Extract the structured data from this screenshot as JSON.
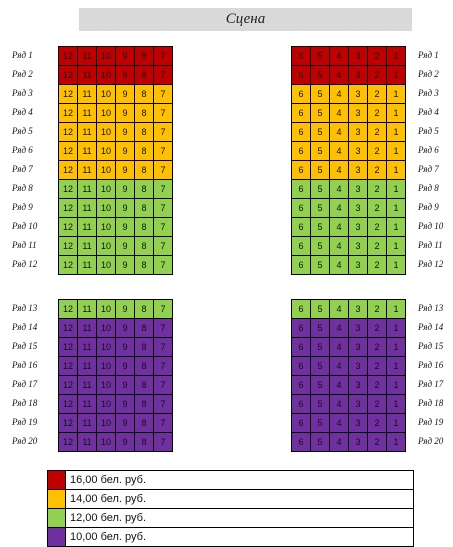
{
  "stage_label": "Сцена",
  "rows_top": [
    "Ряд 1",
    "Ряд 2",
    "Ряд 3",
    "Ряд 4",
    "Ряд 5",
    "Ряд 6",
    "Ряд 7",
    "Ряд 8",
    "Ряд 9",
    "Ряд 10",
    "Ряд 11",
    "Ряд 12"
  ],
  "rows_bottom": [
    "Ряд 13",
    "Ряд 14",
    "Ряд 15",
    "Ряд 16",
    "Ряд 17",
    "Ряд 18",
    "Ряд 19",
    "Ряд 20"
  ],
  "seats_left": [
    "12",
    "11",
    "10",
    "9",
    "8",
    "7"
  ],
  "seats_right": [
    "6",
    "5",
    "4",
    "3",
    "2",
    "1"
  ],
  "colors": {
    "red": "#c00000",
    "orange": "#ffc000",
    "green": "#92d050",
    "purple": "#7030a0"
  },
  "row_price_tier": {
    "top": [
      "red",
      "red",
      "orange",
      "orange",
      "orange",
      "orange",
      "orange",
      "green",
      "green",
      "green",
      "green",
      "green"
    ],
    "bottom": [
      "green",
      "purple",
      "purple",
      "purple",
      "purple",
      "purple",
      "purple",
      "purple"
    ]
  },
  "legend": [
    {
      "color": "red",
      "label": "16,00 бел. руб."
    },
    {
      "color": "orange",
      "label": "14,00 бел. руб."
    },
    {
      "color": "green",
      "label": "12,00 бел. руб."
    },
    {
      "color": "purple",
      "label": "10,00 бел. руб."
    }
  ]
}
